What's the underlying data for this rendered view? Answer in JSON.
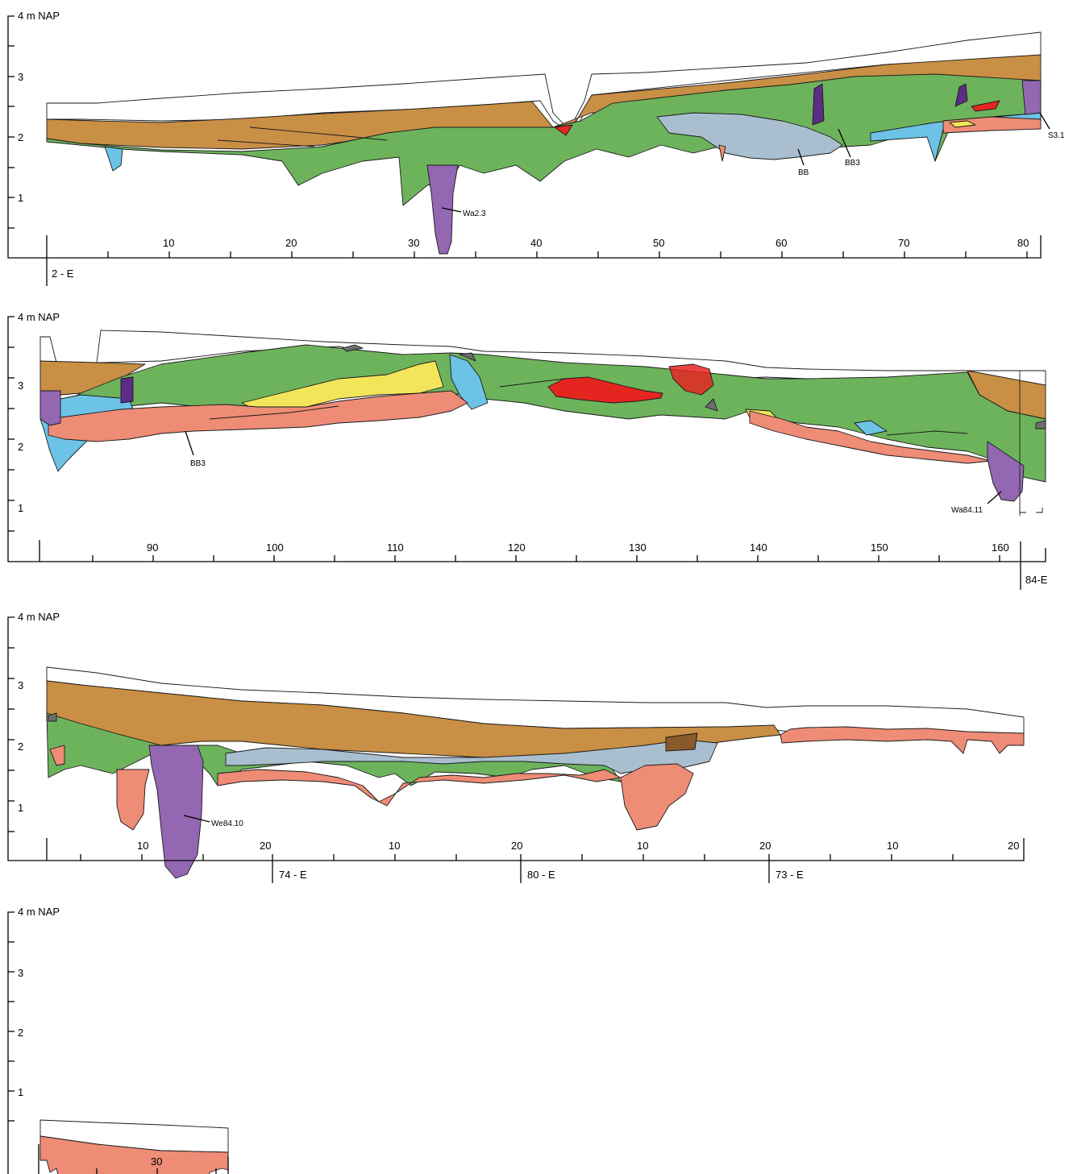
{
  "colors": {
    "white": "#ffffff",
    "brown": "#c98f45",
    "green": "#6db35c",
    "blue": "#6cc3e6",
    "grey_blue": "#a9bfcf",
    "salmon": "#ee8c76",
    "purple": "#9467b2",
    "dark_purple": "#5b2d86",
    "yellow": "#f4e45a",
    "red": "#e52520",
    "dark_grey": "#6e6e6e",
    "dark_brown": "#8a5a2b"
  },
  "panels": [
    {
      "id": "panel1",
      "unit_label": "4 m NAP",
      "y_labels": [
        "3",
        "2",
        "1"
      ],
      "x_labels": [
        "10",
        "20",
        "30",
        "40",
        "50",
        "60",
        "70",
        "80"
      ],
      "section_labels": [
        "2 - E"
      ],
      "annotations": [
        "Wa2.3",
        "BB",
        "BB3",
        "S3.1"
      ]
    },
    {
      "id": "panel2",
      "unit_label": "4 m NAP",
      "y_labels": [
        "3",
        "2",
        "1"
      ],
      "x_labels": [
        "90",
        "100",
        "110",
        "120",
        "130",
        "140",
        "150",
        "160"
      ],
      "section_labels": [
        "84-E"
      ],
      "annotations": [
        "BB3",
        "Wa84.11"
      ]
    },
    {
      "id": "panel3",
      "unit_label": "4 m NAP",
      "y_labels": [
        "3",
        "2",
        "1"
      ],
      "x_labels": [
        "10",
        "20",
        "10",
        "20",
        "10",
        "20",
        "10",
        "20"
      ],
      "section_labels": [
        "74 - E",
        "80 - E",
        "73 - E"
      ],
      "annotations": [
        "We84.10"
      ]
    },
    {
      "id": "panel4",
      "unit_label": "4 m NAP",
      "y_labels": [
        "3",
        "2",
        "1"
      ],
      "x_labels": [
        "30"
      ],
      "section_labels": [],
      "annotations": []
    }
  ]
}
